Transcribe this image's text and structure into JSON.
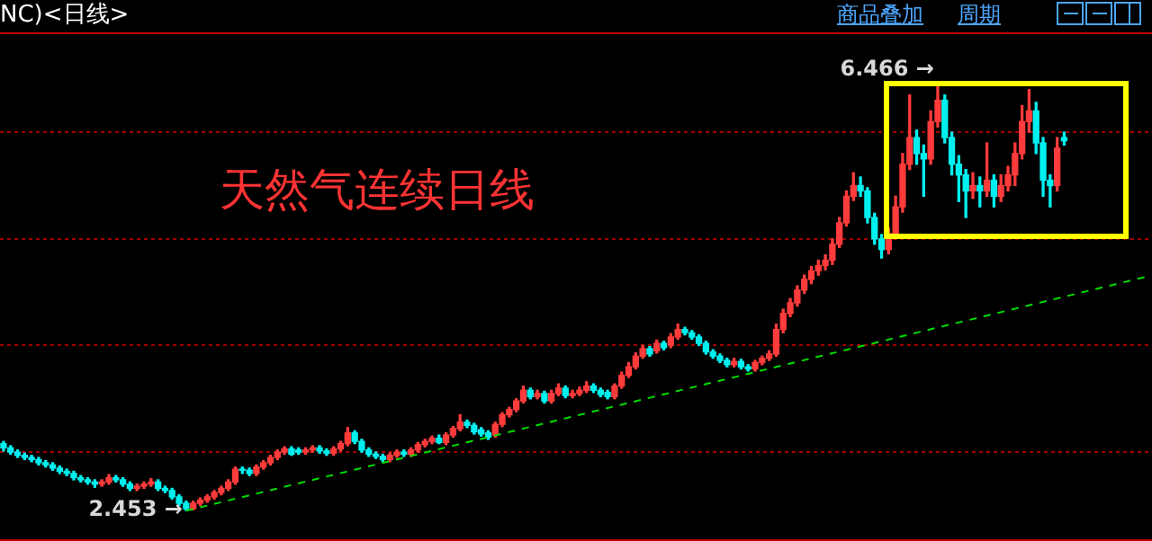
{
  "chart_data": {
    "type": "candlestick",
    "title": "天然气连续日线",
    "subtitle": "NC)<日线>",
    "categories": [
      null,
      null,
      null,
      null,
      null,
      null,
      null,
      null,
      null,
      null,
      null,
      null,
      null,
      null,
      null,
      null,
      null,
      null,
      null,
      null,
      null,
      null,
      null,
      null,
      null,
      null,
      null,
      null,
      null,
      null,
      null,
      null,
      null,
      null,
      null,
      null,
      null,
      null,
      null,
      null,
      null,
      null,
      null,
      null,
      null,
      null,
      null,
      null,
      null,
      null,
      null,
      null,
      null,
      null,
      null,
      null,
      null,
      null,
      null,
      null,
      null,
      null,
      null,
      null,
      null,
      null,
      null,
      null,
      null,
      null,
      null,
      null,
      null,
      null,
      null,
      null,
      null,
      null,
      null,
      null,
      null,
      null,
      null,
      null,
      null,
      null,
      null,
      null,
      null,
      null,
      null,
      null,
      null,
      null,
      null,
      null,
      null,
      null,
      null,
      null,
      null,
      null,
      null,
      null,
      null,
      null,
      null,
      null,
      null,
      null,
      null,
      null,
      null,
      null,
      null,
      null,
      null,
      null,
      null,
      null,
      null,
      null,
      null,
      null,
      null,
      null,
      null,
      null,
      null,
      null,
      null,
      null,
      null,
      null,
      null,
      null,
      null,
      null,
      null,
      null,
      null,
      null,
      null,
      null,
      null,
      null,
      null,
      null,
      null,
      null,
      null,
      null,
      null,
      null,
      null,
      null,
      null,
      null,
      null,
      null,
      null,
      null,
      null,
      null
    ],
    "ohlc": [
      [
        3.08,
        3.1,
        3.01,
        3.04
      ],
      [
        3.04,
        3.06,
        2.98,
        3.0
      ],
      [
        3.0,
        3.02,
        2.95,
        2.97
      ],
      [
        2.97,
        2.99,
        2.93,
        2.95
      ],
      [
        2.95,
        2.97,
        2.91,
        2.93
      ],
      [
        2.93,
        2.95,
        2.88,
        2.9
      ],
      [
        2.9,
        2.92,
        2.86,
        2.88
      ],
      [
        2.88,
        2.9,
        2.83,
        2.85
      ],
      [
        2.85,
        2.87,
        2.8,
        2.82
      ],
      [
        2.82,
        2.84,
        2.78,
        2.8
      ],
      [
        2.8,
        2.82,
        2.74,
        2.76
      ],
      [
        2.76,
        2.78,
        2.72,
        2.74
      ],
      [
        2.74,
        2.76,
        2.7,
        2.72
      ],
      [
        2.72,
        2.74,
        2.67,
        2.7
      ],
      [
        2.7,
        2.74,
        2.68,
        2.72
      ],
      [
        2.72,
        2.79,
        2.7,
        2.76
      ],
      [
        2.76,
        2.78,
        2.72,
        2.74
      ],
      [
        2.74,
        2.76,
        2.68,
        2.7
      ],
      [
        2.7,
        2.72,
        2.64,
        2.66
      ],
      [
        2.66,
        2.7,
        2.64,
        2.68
      ],
      [
        2.68,
        2.72,
        2.66,
        2.7
      ],
      [
        2.7,
        2.75,
        2.68,
        2.72
      ],
      [
        2.72,
        2.74,
        2.64,
        2.66
      ],
      [
        2.66,
        2.68,
        2.62,
        2.64
      ],
      [
        2.64,
        2.66,
        2.56,
        2.58
      ],
      [
        2.58,
        2.6,
        2.5,
        2.52
      ],
      [
        2.52,
        2.54,
        2.453,
        2.47
      ],
      [
        2.47,
        2.54,
        2.46,
        2.52
      ],
      [
        2.52,
        2.57,
        2.5,
        2.55
      ],
      [
        2.55,
        2.6,
        2.53,
        2.58
      ],
      [
        2.58,
        2.64,
        2.56,
        2.62
      ],
      [
        2.62,
        2.68,
        2.6,
        2.66
      ],
      [
        2.66,
        2.74,
        2.64,
        2.72
      ],
      [
        2.72,
        2.86,
        2.7,
        2.84
      ],
      [
        2.84,
        2.86,
        2.8,
        2.83
      ],
      [
        2.83,
        2.85,
        2.78,
        2.8
      ],
      [
        2.8,
        2.88,
        2.78,
        2.86
      ],
      [
        2.86,
        2.92,
        2.84,
        2.9
      ],
      [
        2.9,
        2.97,
        2.88,
        2.95
      ],
      [
        2.95,
        3.02,
        2.93,
        3.0
      ],
      [
        3.0,
        3.05,
        2.98,
        3.03
      ],
      [
        3.03,
        3.05,
        2.97,
        2.98
      ],
      [
        3.02,
        3.04,
        2.98,
        3.0
      ],
      [
        3.0,
        3.04,
        2.98,
        3.02
      ],
      [
        3.02,
        3.06,
        3.0,
        3.04
      ],
      [
        3.04,
        3.06,
        2.99,
        3.01
      ],
      [
        3.01,
        3.03,
        2.97,
        2.99
      ],
      [
        2.99,
        3.05,
        2.97,
        3.03
      ],
      [
        3.03,
        3.1,
        3.01,
        3.08
      ],
      [
        3.08,
        3.23,
        3.06,
        3.18
      ],
      [
        3.18,
        3.2,
        3.08,
        3.1
      ],
      [
        3.1,
        3.12,
        3.0,
        3.02
      ],
      [
        3.02,
        3.04,
        2.96,
        2.98
      ],
      [
        2.98,
        3.0,
        2.94,
        2.96
      ],
      [
        2.96,
        2.98,
        2.91,
        2.93
      ],
      [
        2.93,
        2.99,
        2.91,
        2.97
      ],
      [
        2.97,
        3.02,
        2.95,
        3.0
      ],
      [
        3.0,
        3.02,
        2.96,
        2.98
      ],
      [
        2.98,
        3.04,
        2.96,
        3.02
      ],
      [
        3.02,
        3.09,
        3.0,
        3.07
      ],
      [
        3.07,
        3.12,
        3.05,
        3.1
      ],
      [
        3.1,
        3.15,
        3.08,
        3.13
      ],
      [
        3.13,
        3.16,
        3.08,
        3.09
      ],
      [
        3.09,
        3.18,
        3.07,
        3.16
      ],
      [
        3.16,
        3.24,
        3.14,
        3.22
      ],
      [
        3.22,
        3.35,
        3.2,
        3.28
      ],
      [
        3.28,
        3.3,
        3.23,
        3.25
      ],
      [
        3.25,
        3.27,
        3.17,
        3.19
      ],
      [
        3.21,
        3.23,
        3.15,
        3.17
      ],
      [
        3.18,
        3.2,
        3.12,
        3.14
      ],
      [
        3.16,
        3.28,
        3.14,
        3.26
      ],
      [
        3.26,
        3.37,
        3.24,
        3.35
      ],
      [
        3.35,
        3.42,
        3.33,
        3.4
      ],
      [
        3.4,
        3.5,
        3.38,
        3.48
      ],
      [
        3.48,
        3.62,
        3.46,
        3.58
      ],
      [
        3.58,
        3.6,
        3.5,
        3.52
      ],
      [
        3.52,
        3.58,
        3.5,
        3.55
      ],
      [
        3.55,
        3.57,
        3.46,
        3.48
      ],
      [
        3.48,
        3.58,
        3.46,
        3.55
      ],
      [
        3.55,
        3.64,
        3.53,
        3.6
      ],
      [
        3.6,
        3.62,
        3.51,
        3.53
      ],
      [
        3.53,
        3.58,
        3.51,
        3.55
      ],
      [
        3.55,
        3.61,
        3.53,
        3.58
      ],
      [
        3.58,
        3.66,
        3.56,
        3.62
      ],
      [
        3.62,
        3.64,
        3.56,
        3.58
      ],
      [
        3.58,
        3.6,
        3.52,
        3.54
      ],
      [
        3.56,
        3.58,
        3.5,
        3.52
      ],
      [
        3.52,
        3.64,
        3.5,
        3.62
      ],
      [
        3.62,
        3.75,
        3.6,
        3.72
      ],
      [
        3.72,
        3.84,
        3.7,
        3.8
      ],
      [
        3.8,
        3.93,
        3.78,
        3.9
      ],
      [
        3.9,
        4.0,
        3.88,
        3.97
      ],
      [
        3.97,
        3.99,
        3.9,
        3.92
      ],
      [
        3.95,
        4.05,
        3.93,
        4.02
      ],
      [
        4.02,
        4.04,
        3.96,
        3.98
      ],
      [
        4.0,
        4.11,
        3.98,
        4.08
      ],
      [
        4.08,
        4.2,
        4.06,
        4.15
      ],
      [
        4.15,
        4.17,
        4.1,
        4.12
      ],
      [
        4.12,
        4.14,
        4.06,
        4.08
      ],
      [
        4.08,
        4.1,
        4.0,
        4.02
      ],
      [
        4.02,
        4.04,
        3.92,
        3.94
      ],
      [
        3.94,
        3.96,
        3.88,
        3.9
      ],
      [
        3.9,
        3.92,
        3.84,
        3.86
      ],
      [
        3.86,
        3.88,
        3.8,
        3.82
      ],
      [
        3.82,
        3.88,
        3.8,
        3.85
      ],
      [
        3.85,
        3.87,
        3.78,
        3.8
      ],
      [
        3.8,
        3.82,
        3.76,
        3.78
      ],
      [
        3.78,
        3.86,
        3.76,
        3.84
      ],
      [
        3.84,
        3.9,
        3.82,
        3.88
      ],
      [
        3.88,
        3.95,
        3.86,
        3.92
      ],
      [
        3.92,
        4.2,
        3.9,
        4.15
      ],
      [
        4.15,
        4.34,
        4.12,
        4.3
      ],
      [
        4.3,
        4.44,
        4.27,
        4.4
      ],
      [
        4.4,
        4.56,
        4.37,
        4.52
      ],
      [
        4.52,
        4.66,
        4.49,
        4.62
      ],
      [
        4.62,
        4.74,
        4.58,
        4.7
      ],
      [
        4.7,
        4.8,
        4.66,
        4.75
      ],
      [
        4.75,
        4.85,
        4.71,
        4.8
      ],
      [
        4.8,
        5.0,
        4.76,
        4.95
      ],
      [
        4.95,
        5.2,
        4.92,
        5.15
      ],
      [
        5.15,
        5.45,
        5.12,
        5.4
      ],
      [
        5.4,
        5.62,
        5.36,
        5.5
      ],
      [
        5.5,
        5.58,
        5.4,
        5.45
      ],
      [
        5.45,
        5.48,
        5.15,
        5.2
      ],
      [
        5.2,
        5.24,
        4.95,
        5.0
      ],
      [
        5.0,
        5.04,
        4.82,
        4.9
      ],
      [
        4.9,
        5.1,
        4.86,
        5.05
      ],
      [
        5.05,
        5.4,
        5.0,
        5.3
      ],
      [
        5.3,
        5.8,
        5.25,
        5.7
      ],
      [
        5.7,
        6.35,
        5.65,
        5.95
      ],
      [
        5.95,
        6.02,
        5.7,
        5.8
      ],
      [
        5.8,
        5.88,
        5.4,
        5.75
      ],
      [
        5.75,
        6.2,
        5.7,
        6.1
      ],
      [
        6.1,
        6.466,
        6.05,
        6.3
      ],
      [
        6.3,
        6.35,
        5.9,
        5.95
      ],
      [
        5.95,
        6.0,
        5.6,
        5.7
      ],
      [
        5.7,
        5.78,
        5.35,
        5.6
      ],
      [
        5.6,
        5.65,
        5.2,
        5.45
      ],
      [
        5.45,
        5.62,
        5.38,
        5.5
      ],
      [
        5.5,
        5.58,
        5.3,
        5.45
      ],
      [
        5.45,
        5.9,
        5.4,
        5.55
      ],
      [
        5.55,
        5.6,
        5.3,
        5.4
      ],
      [
        5.4,
        5.6,
        5.35,
        5.5
      ],
      [
        5.5,
        5.68,
        5.45,
        5.6
      ],
      [
        5.6,
        5.9,
        5.5,
        5.8
      ],
      [
        5.8,
        6.25,
        5.75,
        6.1
      ],
      [
        6.1,
        6.4,
        6.0,
        6.2
      ],
      [
        6.2,
        6.28,
        5.8,
        5.9
      ],
      [
        5.9,
        5.95,
        5.4,
        5.55
      ],
      [
        5.55,
        5.6,
        5.3,
        5.5
      ],
      [
        5.5,
        5.95,
        5.45,
        5.85
      ],
      [
        5.95,
        6.0,
        5.88,
        5.92
      ],
      null,
      null,
      null,
      null,
      null,
      null,
      null,
      null,
      null,
      null,
      null,
      null
    ],
    "series": [
      {
        "type": "line",
        "color": "#00dd00",
        "line_style": "dashed",
        "values": [
          null,
          null,
          null,
          null,
          null,
          null,
          null,
          null,
          null,
          null,
          null,
          null,
          null,
          null,
          null,
          null,
          null,
          null,
          null,
          null,
          null,
          null,
          null,
          null,
          null,
          null,
          2.45,
          null,
          null,
          null,
          null,
          null,
          null,
          null,
          null,
          null,
          null,
          null,
          null,
          null,
          null,
          null,
          null,
          null,
          null,
          null,
          null,
          null,
          null,
          null,
          null,
          null,
          null,
          null,
          null,
          null,
          null,
          null,
          null,
          null,
          null,
          null,
          null,
          null,
          null,
          null,
          null,
          null,
          null,
          null,
          null,
          null,
          null,
          null,
          null,
          null,
          null,
          null,
          null,
          null,
          null,
          null,
          null,
          null,
          null,
          null,
          null,
          null,
          null,
          null,
          null,
          null,
          null,
          null,
          null,
          null,
          null,
          null,
          null,
          null,
          null,
          null,
          null,
          null,
          null,
          null,
          null,
          null,
          null,
          null,
          null,
          null,
          null,
          null,
          null,
          null,
          null,
          null,
          null,
          null,
          null,
          null,
          null,
          null,
          null,
          null,
          null,
          null,
          null,
          null,
          null,
          null,
          null,
          null,
          null,
          null,
          null,
          null,
          null,
          null,
          null,
          null,
          null,
          null,
          null,
          null,
          null,
          null,
          null,
          null,
          null,
          null,
          null,
          null,
          null,
          null,
          null,
          null,
          null,
          null,
          null,
          null,
          null,
          4.65
        ]
      }
    ],
    "ylim": [
      2.2,
      6.92
    ],
    "yticks": [
      {
        "value": 3,
        "label": null
      },
      {
        "value": 4,
        "label": null
      },
      {
        "value": 5,
        "label": null
      },
      {
        "value": 6,
        "label": null
      }
    ],
    "grid": "y",
    "legend": false,
    "annotations": [
      "6.466 →",
      "2.453 →",
      "商品叠加",
      "周期"
    ]
  }
}
